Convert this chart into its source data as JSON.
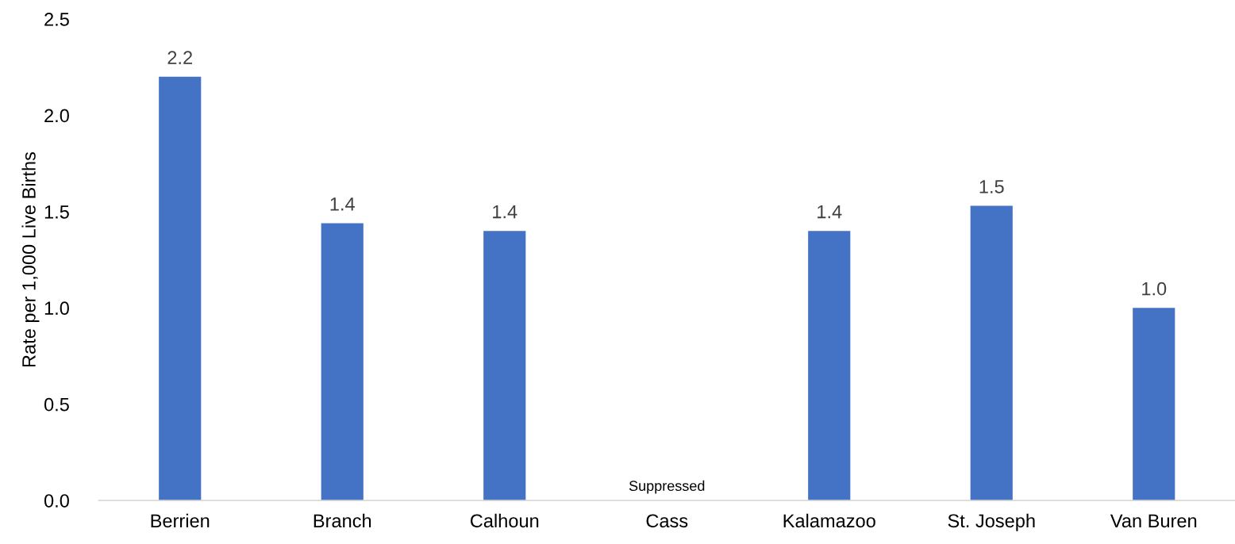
{
  "chart_data": {
    "type": "bar",
    "ylabel": "Rate per 1,000 Live Births",
    "categories": [
      "Berrien",
      "Branch",
      "Calhoun",
      "Cass",
      "Kalamazoo",
      "St. Joseph",
      "Van Buren"
    ],
    "values": [
      2.2,
      1.44,
      1.4,
      null,
      1.4,
      1.53,
      1.0
    ],
    "value_labels": [
      "2.2",
      "1.4",
      "1.4",
      null,
      "1.4",
      "1.5",
      "1.0"
    ],
    "color": "#4472c4",
    "ylim": [
      0,
      2.5
    ],
    "yticks": [
      {
        "value": 0,
        "label": "0.0"
      },
      {
        "value": 0.5,
        "label": "0.5"
      },
      {
        "value": 1,
        "label": "1.0"
      },
      {
        "value": 1.5,
        "label": "1.5"
      },
      {
        "value": 2,
        "label": "2.0"
      },
      {
        "value": 2.5,
        "label": "2.5"
      }
    ],
    "annotations": [
      "Suppressed"
    ],
    "grid": false,
    "legend": false
  }
}
